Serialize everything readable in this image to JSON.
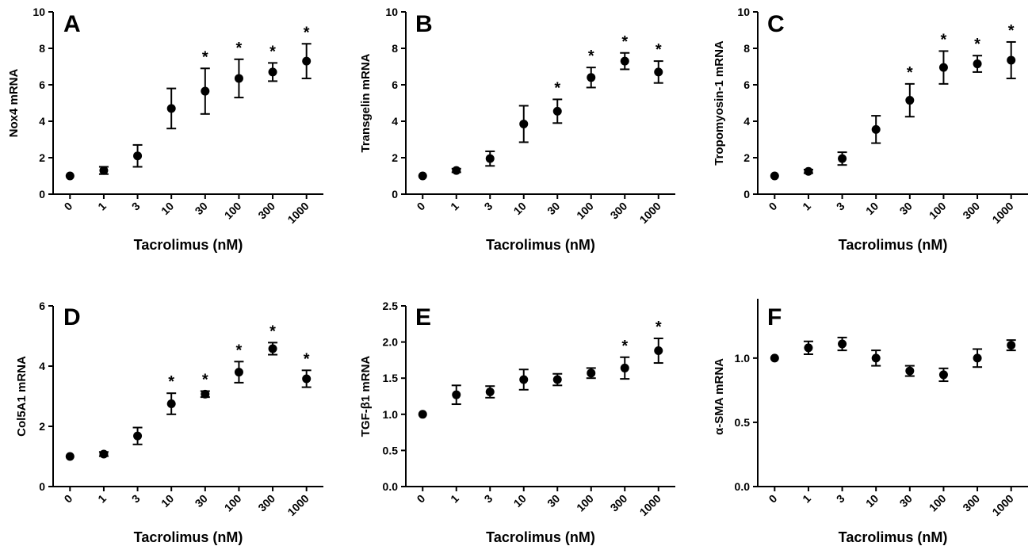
{
  "chart_data": [
    {
      "type": "scatter",
      "panel": "A",
      "ylabel": "Nox4 mRNA",
      "xlabel": "Tacrolimus (nM)",
      "categories": [
        "0",
        "1",
        "3",
        "10",
        "30",
        "100",
        "300",
        "1000"
      ],
      "ylim": [
        0,
        10
      ],
      "yticks": [
        "0",
        "2",
        "4",
        "6",
        "8",
        "10"
      ],
      "series": [
        {
          "values": [
            1.0,
            1.3,
            2.1,
            4.7,
            5.65,
            6.35,
            6.7,
            7.3
          ],
          "errors": [
            0.0,
            0.2,
            0.6,
            1.1,
            1.25,
            1.05,
            0.5,
            0.95
          ],
          "significant": [
            false,
            false,
            false,
            false,
            true,
            true,
            true,
            true
          ]
        }
      ],
      "annotation": "*"
    },
    {
      "type": "scatter",
      "panel": "B",
      "ylabel": "Transgelin mRNA",
      "xlabel": "Tacrolimus (nM)",
      "categories": [
        "0",
        "1",
        "3",
        "10",
        "30",
        "100",
        "300",
        "1000"
      ],
      "ylim": [
        0,
        10
      ],
      "yticks": [
        "0",
        "2",
        "4",
        "6",
        "8",
        "10"
      ],
      "series": [
        {
          "values": [
            1.0,
            1.3,
            1.95,
            3.85,
            4.55,
            6.4,
            7.3,
            6.7
          ],
          "errors": [
            0.0,
            0.1,
            0.4,
            1.0,
            0.65,
            0.55,
            0.45,
            0.6
          ],
          "significant": [
            false,
            false,
            false,
            false,
            true,
            true,
            true,
            true
          ]
        }
      ],
      "annotation": "*"
    },
    {
      "type": "scatter",
      "panel": "C",
      "ylabel": "Tropomyosin-1 mRNA",
      "xlabel": "Tacrolimus (nM)",
      "categories": [
        "0",
        "1",
        "3",
        "10",
        "30",
        "100",
        "300",
        "1000"
      ],
      "ylim": [
        0,
        10
      ],
      "yticks": [
        "0",
        "2",
        "4",
        "6",
        "8",
        "10"
      ],
      "series": [
        {
          "values": [
            1.0,
            1.25,
            1.95,
            3.55,
            5.15,
            6.95,
            7.15,
            7.35
          ],
          "errors": [
            0.0,
            0.1,
            0.35,
            0.75,
            0.9,
            0.9,
            0.45,
            1.0
          ],
          "significant": [
            false,
            false,
            false,
            false,
            true,
            true,
            true,
            true
          ]
        }
      ],
      "annotation": "*"
    },
    {
      "type": "scatter",
      "panel": "D",
      "ylabel": "Col5A1 mRNA",
      "xlabel": "Tacrolimus (nM)",
      "categories": [
        "0",
        "1",
        "3",
        "10",
        "30",
        "100",
        "300",
        "1000"
      ],
      "ylim": [
        0,
        6
      ],
      "yticks": [
        "0",
        "2",
        "4",
        "6"
      ],
      "series": [
        {
          "values": [
            1.0,
            1.08,
            1.68,
            2.75,
            3.07,
            3.8,
            4.58,
            3.58
          ],
          "errors": [
            0.0,
            0.07,
            0.28,
            0.35,
            0.1,
            0.35,
            0.2,
            0.28
          ],
          "significant": [
            false,
            false,
            false,
            true,
            true,
            true,
            true,
            true
          ]
        }
      ],
      "annotation": "*"
    },
    {
      "type": "scatter",
      "panel": "E",
      "ylabel": "TGF-β1 mRNA",
      "xlabel": "Tacrolimus (nM)",
      "categories": [
        "0",
        "1",
        "3",
        "10",
        "30",
        "100",
        "300",
        "1000"
      ],
      "ylim": [
        0,
        2.5
      ],
      "yticks": [
        "0.0",
        "0.5",
        "1.0",
        "1.5",
        "2.0",
        "2.5"
      ],
      "series": [
        {
          "values": [
            1.0,
            1.27,
            1.31,
            1.48,
            1.48,
            1.57,
            1.64,
            1.88
          ],
          "errors": [
            0.0,
            0.13,
            0.08,
            0.14,
            0.08,
            0.07,
            0.15,
            0.17
          ],
          "significant": [
            false,
            false,
            false,
            false,
            false,
            false,
            true,
            true
          ]
        }
      ],
      "annotation": "*"
    },
    {
      "type": "scatter",
      "panel": "F",
      "ylabel": "α-SMA mRNA",
      "xlabel": "Tacrolimus (nM)",
      "categories": [
        "0",
        "1",
        "3",
        "10",
        "30",
        "100",
        "300",
        "1000"
      ],
      "ylim": [
        0,
        1.4
      ],
      "yticks": [
        "0.0",
        "0.5",
        "1.0"
      ],
      "series": [
        {
          "values": [
            1.0,
            1.08,
            1.11,
            1.0,
            0.9,
            0.87,
            1.0,
            1.1
          ],
          "errors": [
            0.0,
            0.05,
            0.05,
            0.06,
            0.04,
            0.05,
            0.07,
            0.04
          ],
          "significant": [
            false,
            false,
            false,
            false,
            false,
            false,
            false,
            false
          ]
        }
      ],
      "annotation": "*"
    }
  ]
}
